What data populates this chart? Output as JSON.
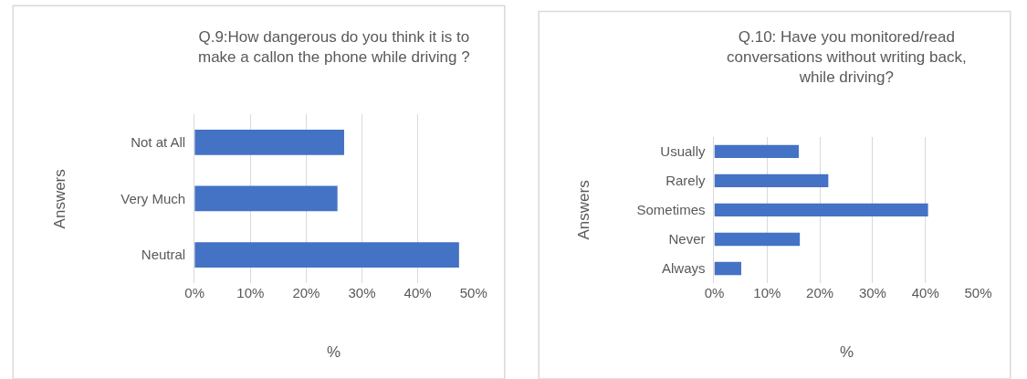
{
  "chart_data": [
    {
      "type": "bar",
      "orientation": "horizontal",
      "title": "Q.9:How dangerous do you think it is to make a callon the phone while driving ?",
      "xlabel": "%",
      "ylabel": "Answers",
      "categories": [
        "Not at All",
        "Very Much",
        "Neutral"
      ],
      "values": [
        26.8,
        25.6,
        47.4
      ],
      "color": "#4472c4",
      "xlim": [
        0,
        50
      ],
      "xticks": [
        {
          "value": 0,
          "label": "0%"
        },
        {
          "value": 10,
          "label": "10%"
        },
        {
          "value": 20,
          "label": "20%"
        },
        {
          "value": 30,
          "label": "30%"
        },
        {
          "value": 40,
          "label": "40%"
        },
        {
          "value": 50,
          "label": "50%"
        }
      ],
      "grid": "x",
      "legend": false
    },
    {
      "type": "bar",
      "orientation": "horizontal",
      "title": "Q.10: Have you monitored/read conversations without writing back, while driving?",
      "xlabel": "%",
      "ylabel": "Answers",
      "categories": [
        "Usually",
        "Rarely",
        "Sometimes",
        "Never",
        "Always"
      ],
      "values": [
        16.0,
        21.6,
        40.5,
        16.2,
        5.1
      ],
      "color": "#4472c4",
      "xlim": [
        0,
        50
      ],
      "xticks": [
        {
          "value": 0,
          "label": "0%"
        },
        {
          "value": 10,
          "label": "10%"
        },
        {
          "value": 20,
          "label": "20%"
        },
        {
          "value": 30,
          "label": "30%"
        },
        {
          "value": 40,
          "label": "40%"
        },
        {
          "value": 50,
          "label": "50%"
        }
      ],
      "grid": "x",
      "legend": false
    }
  ]
}
